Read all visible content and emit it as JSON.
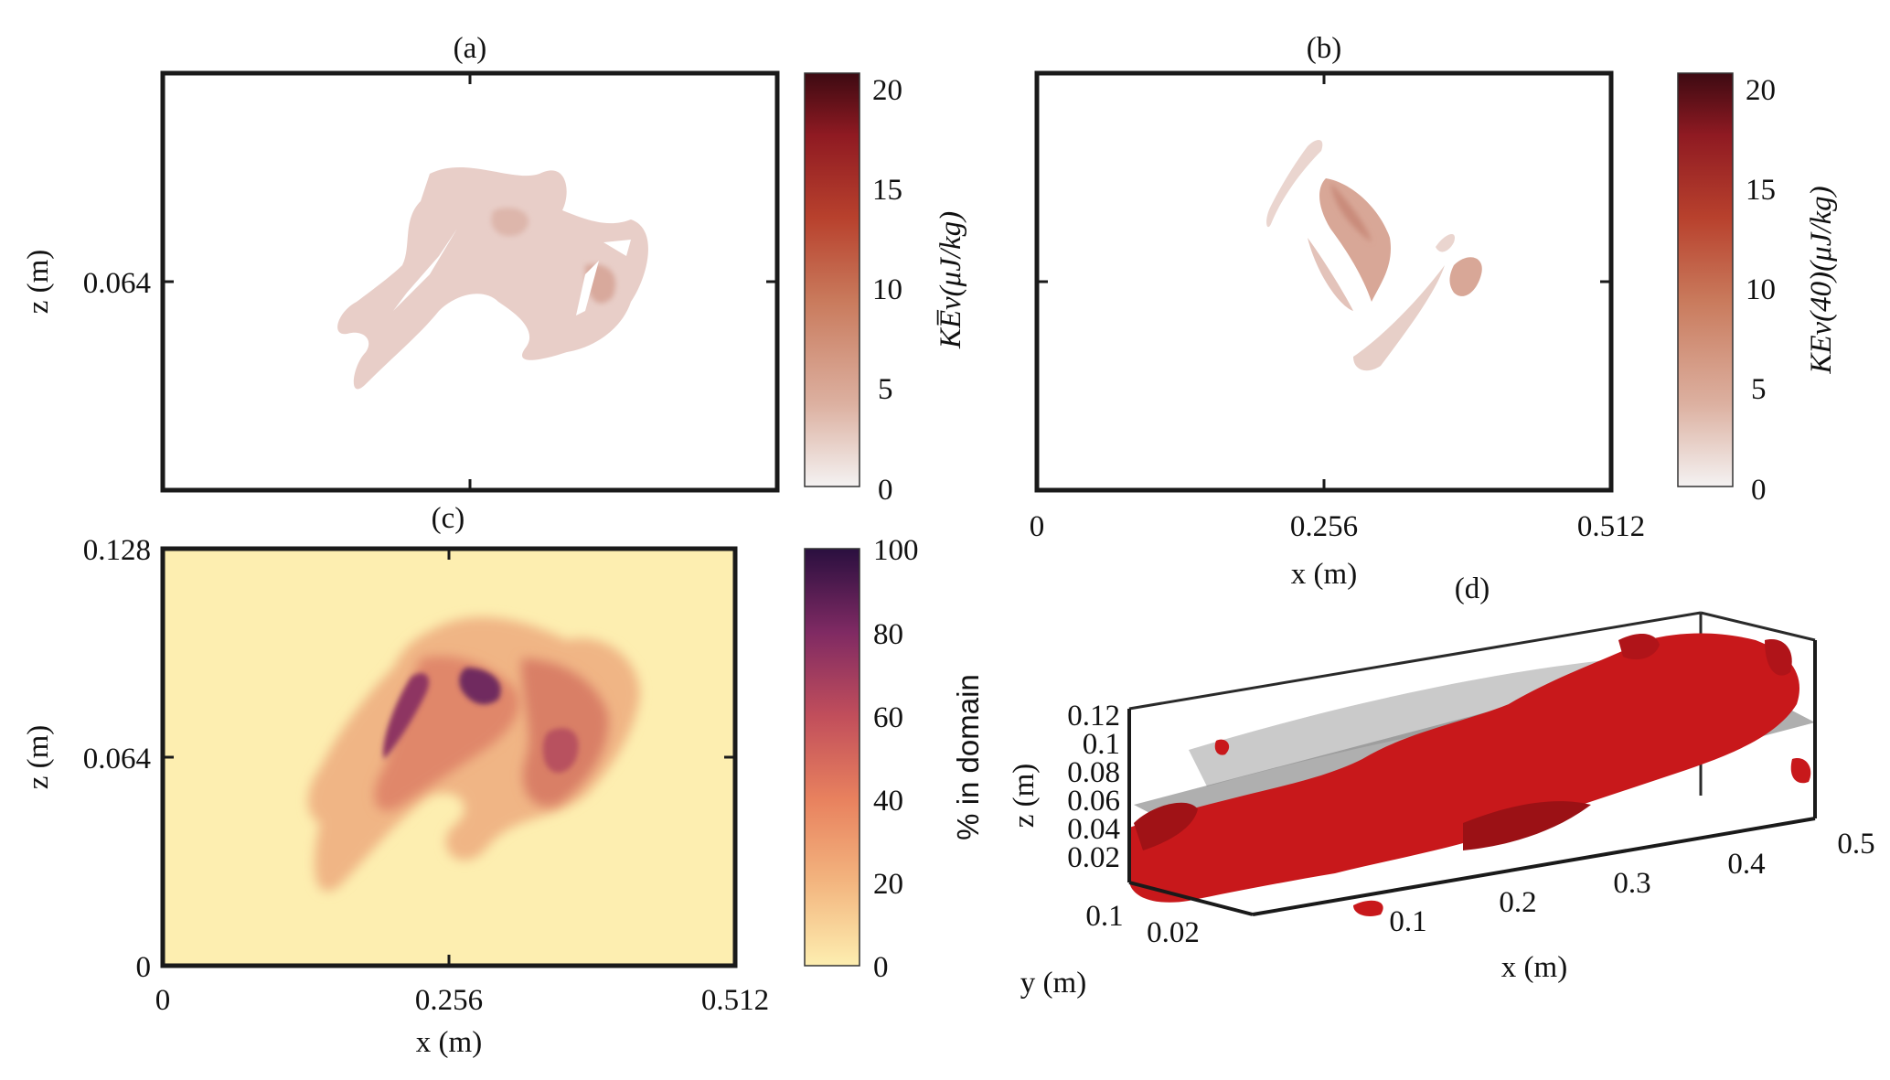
{
  "chart_data": [
    {
      "id": "a",
      "type": "heatmap",
      "title": "(a)",
      "xlabel": "",
      "ylabel": "z (m)",
      "xlim": [
        0,
        0.512
      ],
      "ylim": [
        0,
        0.128
      ],
      "yticks": [
        "0.064"
      ],
      "colorbar": {
        "label": "KE_v overline (μJ/kg)",
        "label_text": "KE̅v(μJ/kg)",
        "range": [
          0,
          21
        ],
        "ticks": [
          "0",
          "5",
          "10",
          "15",
          "20"
        ],
        "colormap": [
          "#f1efef",
          "#dcb0a0",
          "#c97a5c",
          "#b8412d",
          "#8f1a22",
          "#3d0a12"
        ]
      },
      "blobs": [
        {
          "x": 0.23,
          "z": 0.07,
          "rx": 0.09,
          "rz": 0.03,
          "level": 2.2
        },
        {
          "x": 0.34,
          "z": 0.065,
          "rx": 0.07,
          "rz": 0.035,
          "level": 2.8
        }
      ]
    },
    {
      "id": "b",
      "type": "heatmap",
      "title": "(b)",
      "xlabel": "x (m)",
      "ylabel": "",
      "xlim": [
        0,
        0.512
      ],
      "xticks": [
        "0",
        "0.256",
        "0.512"
      ],
      "colorbar": {
        "label": "KE_v(40) (μJ/kg)",
        "label_text": "KEv(40)(μJ/kg)",
        "range": [
          0,
          21
        ],
        "ticks": [
          "0",
          "5",
          "10",
          "15",
          "20"
        ],
        "colormap": [
          "#f1efef",
          "#dcb0a0",
          "#c97a5c",
          "#b8412d",
          "#8f1a22",
          "#3d0a12"
        ]
      },
      "blobs": [
        {
          "x": 0.28,
          "z": 0.085,
          "rx": 0.05,
          "rz": 0.03,
          "level": 4.0
        },
        {
          "x": 0.38,
          "z": 0.063,
          "rx": 0.02,
          "rz": 0.012,
          "level": 4.5
        }
      ]
    },
    {
      "id": "c",
      "type": "heatmap",
      "title": "(c)",
      "xlabel": "x (m)",
      "ylabel": "z (m)",
      "xlim": [
        0,
        0.512
      ],
      "ylim": [
        0,
        0.128
      ],
      "xticks": [
        "0",
        "0.256",
        "0.512"
      ],
      "yticks": [
        "0",
        "0.064",
        "0.128"
      ],
      "colorbar": {
        "label": "% in domain",
        "range": [
          0,
          100
        ],
        "ticks": [
          "0",
          "20",
          "40",
          "60",
          "80",
          "100"
        ],
        "colormap": [
          "#fdeeb0",
          "#f3b57f",
          "#e8815e",
          "#c14e5b",
          "#7f2a63",
          "#2a0f3f"
        ]
      },
      "blobs": [
        {
          "x": 0.22,
          "z": 0.07,
          "rx": 0.09,
          "rz": 0.038,
          "level": 35
        },
        {
          "x": 0.35,
          "z": 0.065,
          "rx": 0.07,
          "rz": 0.035,
          "level": 40
        },
        {
          "x": 0.21,
          "z": 0.075,
          "rx": 0.02,
          "rz": 0.02,
          "level": 75
        },
        {
          "x": 0.28,
          "z": 0.085,
          "rx": 0.03,
          "rz": 0.015,
          "level": 85
        }
      ]
    },
    {
      "id": "d",
      "type": "scatter",
      "title": "(d)",
      "subtype": "3d-isosurface",
      "xlabel": "x (m)",
      "ylabel": "y (m)",
      "zlabel": "z (m)",
      "xticks": [
        "0.1",
        "0.2",
        "0.3",
        "0.4",
        "0.5"
      ],
      "yticks": [
        "0.1",
        "0.02"
      ],
      "zticks": [
        "0.02",
        "0.04",
        "0.06",
        "0.08",
        "0.1",
        "0.12"
      ],
      "surface_color": "#c8181b",
      "plane_color": "#7a7a7a"
    }
  ]
}
